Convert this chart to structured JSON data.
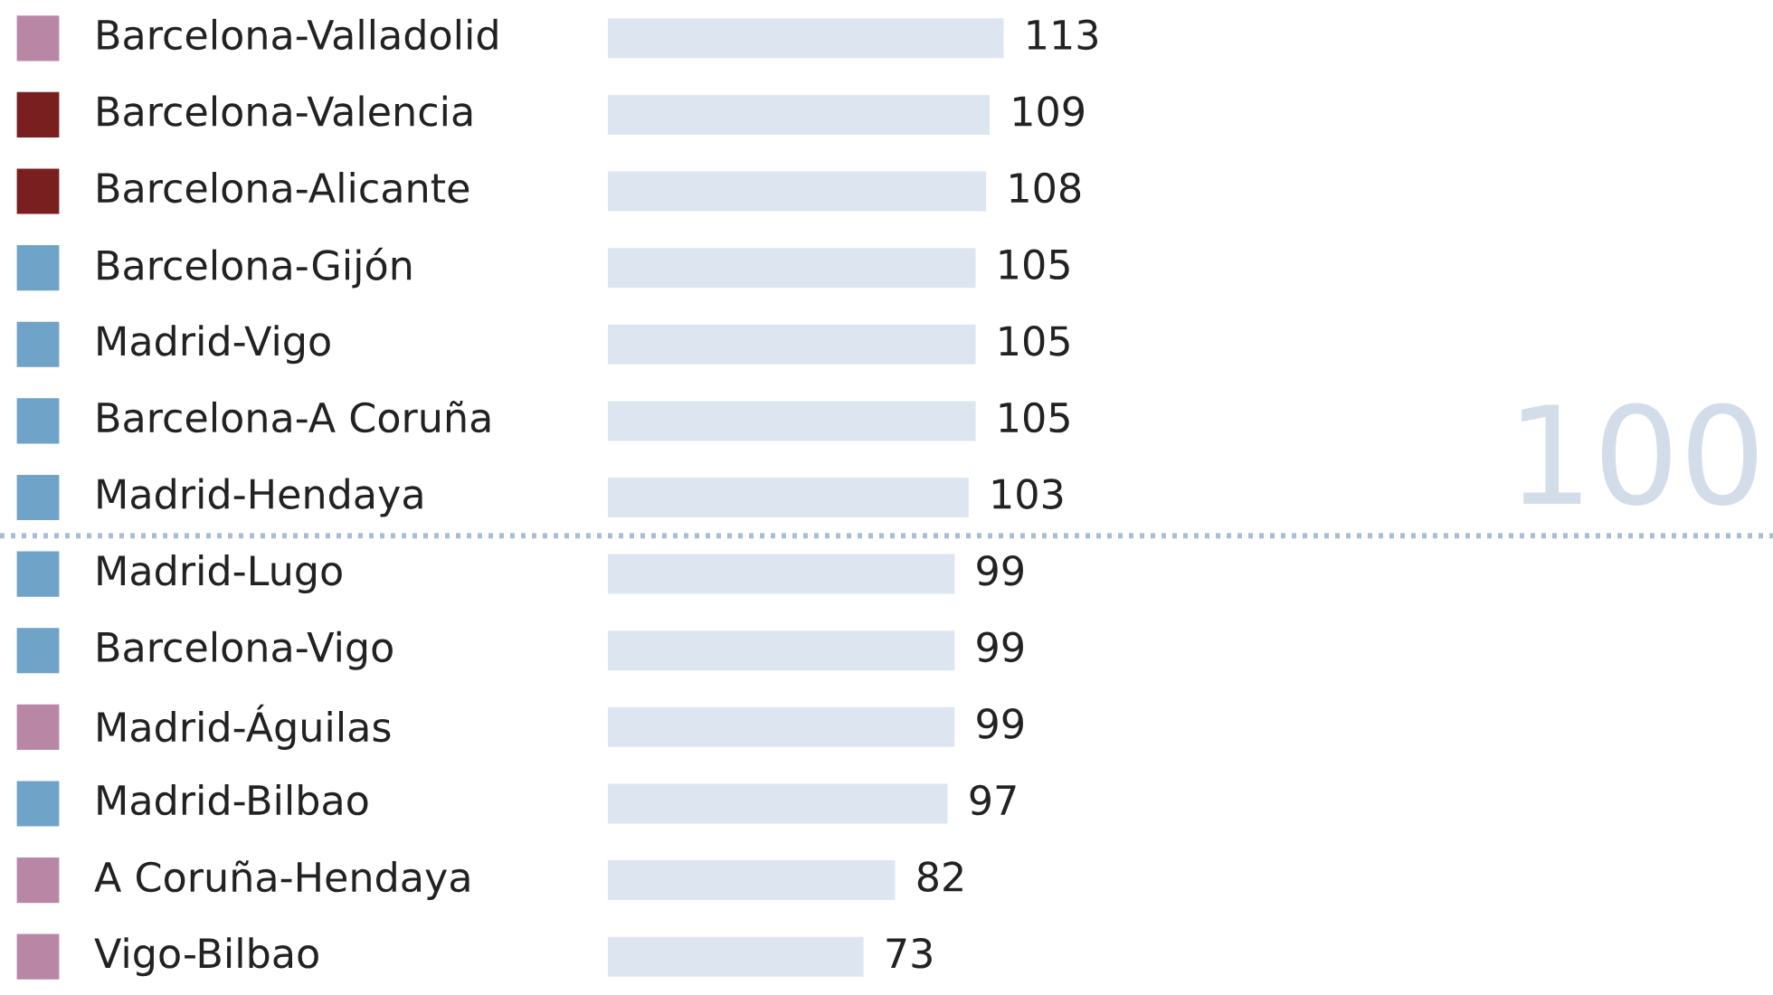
{
  "chart_data": {
    "type": "bar",
    "orientation": "horizontal",
    "data_labels": true,
    "legend": false,
    "categories": [
      "Barcelona-Valladolid",
      "Barcelona-Valencia",
      "Barcelona-Alicante",
      "Barcelona-Gijón",
      "Madrid-Vigo",
      "Barcelona-A Coruña",
      "Madrid-Hendaya",
      "Madrid-Lugo",
      "Barcelona-Vigo",
      "Madrid-Águilas",
      "Madrid-Bilbao",
      "A Coruña-Hendaya",
      "Vigo-Bilbao"
    ],
    "series": [
      {
        "color": "#dde6f0",
        "values": [
          113,
          109,
          108,
          105,
          105,
          105,
          103,
          99,
          99,
          99,
          97,
          82,
          73
        ]
      }
    ],
    "colors": [
      "#b887a6",
      "#7a1f1f",
      "#7a1f1f",
      "#6fa3c8",
      "#6fa3c8",
      "#6fa3c8",
      "#6fa3c8",
      "#6fa3c8",
      "#6fa3c8",
      "#b887a6",
      "#6fa3c8",
      "#b887a6",
      "#b887a6"
    ],
    "annotations": [
      "100"
    ]
  }
}
